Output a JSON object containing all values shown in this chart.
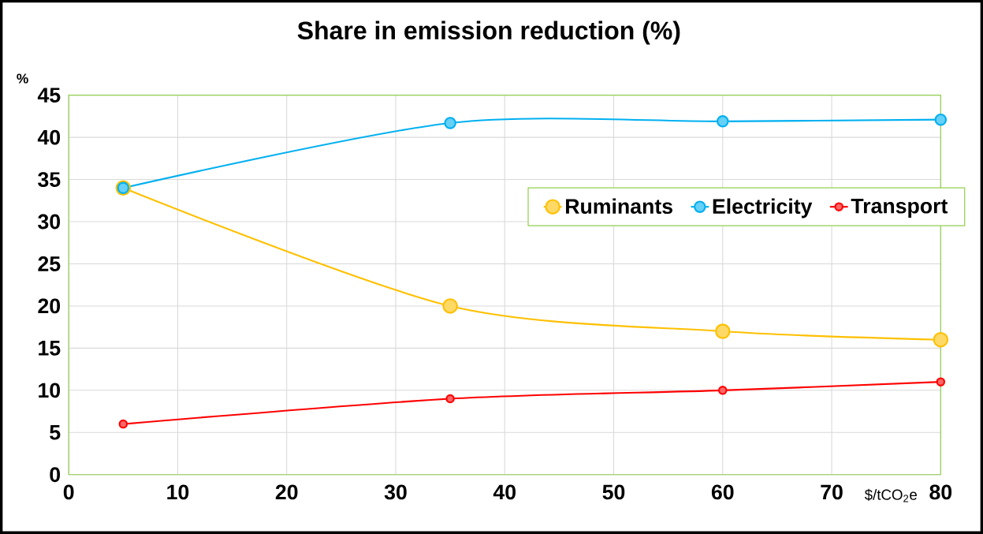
{
  "chart_data": {
    "type": "line",
    "title": "Share in emission reduction (%)",
    "xlabel": "$/tCO$_{2}$e",
    "ylabel": "%",
    "x": [
      5,
      35,
      60,
      80
    ],
    "series": [
      {
        "name": "Ruminants",
        "color": "#ffc000",
        "values": [
          34,
          20,
          17,
          16
        ]
      },
      {
        "name": "Electricity",
        "color": "#00b0f0",
        "values": [
          34,
          41.7,
          41.9,
          42.1
        ]
      },
      {
        "name": "Transport",
        "color": "#ff0000",
        "values": [
          6,
          9,
          10,
          11
        ]
      }
    ],
    "xlim": [
      0,
      80
    ],
    "xticks": [
      0,
      10,
      20,
      30,
      40,
      50,
      60,
      70,
      80
    ],
    "ylim": [
      0,
      45
    ],
    "yticks": [
      0,
      5,
      10,
      15,
      20,
      25,
      30,
      35,
      40,
      45
    ],
    "grid": true,
    "legend": "right",
    "marker": "circle",
    "line_style": "solid"
  }
}
